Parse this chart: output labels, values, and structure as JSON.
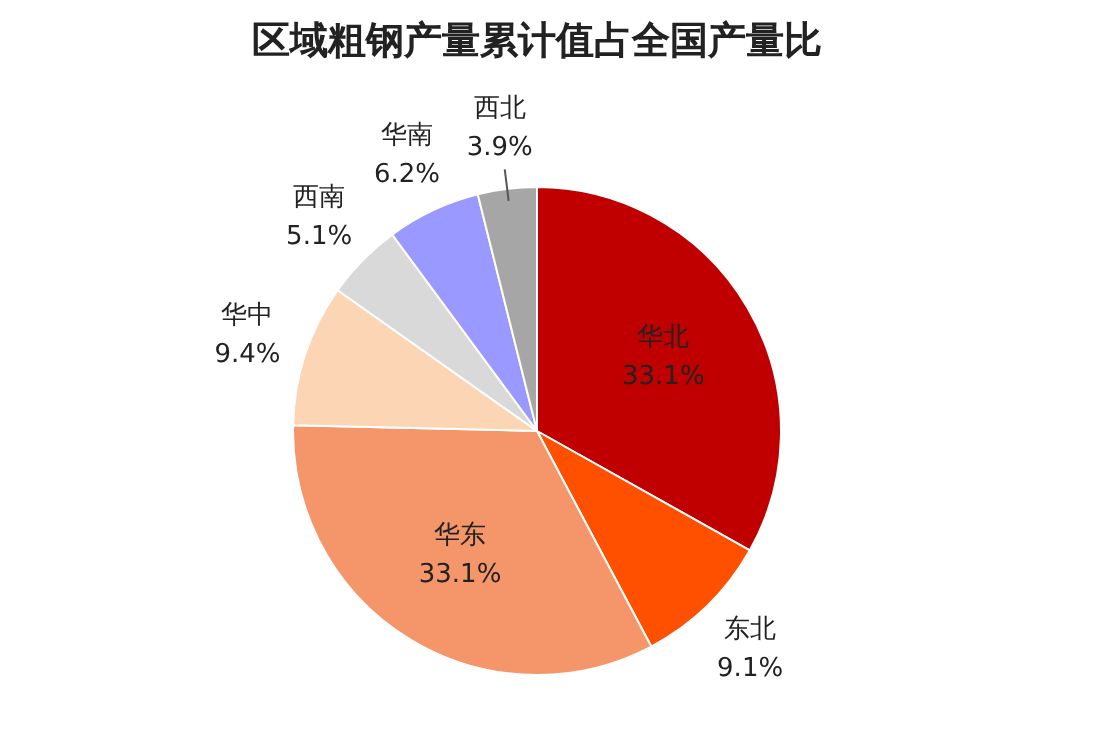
{
  "chart_data": {
    "type": "pie",
    "title": "区域粗钢产量累计值占全国产量比",
    "categories": [
      "华北",
      "东北",
      "华东",
      "华中",
      "西南",
      "华南",
      "西北"
    ],
    "values": [
      33.1,
      9.1,
      33.1,
      9.4,
      5.1,
      6.2,
      3.9
    ],
    "value_labels": [
      "33.1%",
      "9.1%",
      "33.1%",
      "9.4%",
      "5.1%",
      "6.2%",
      "3.9%"
    ],
    "colors": [
      "#c00000",
      "#ff5000",
      "#f4956a",
      "#fcd5b5",
      "#d9d9d9",
      "#9999ff",
      "#a6a6a6"
    ],
    "legend": false
  }
}
